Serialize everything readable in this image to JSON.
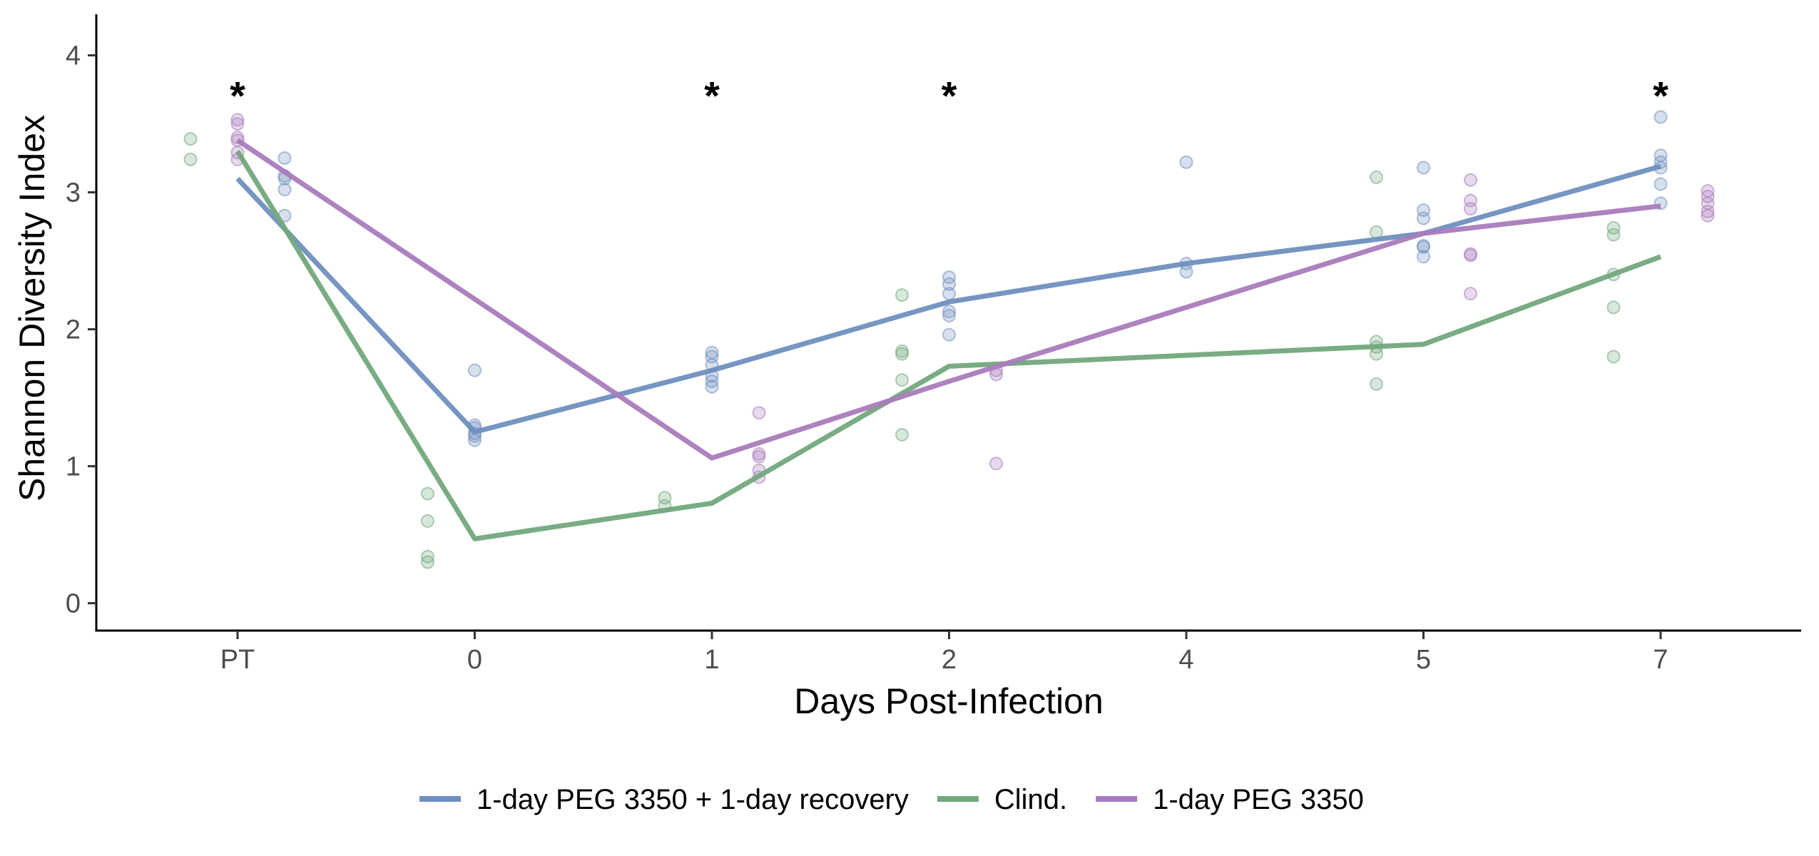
{
  "chart_data": {
    "type": "line",
    "xlabel": "Days Post-Infection",
    "ylabel": "Shannon Diversity Index",
    "categories": [
      "PT",
      "0",
      "1",
      "2",
      "4",
      "5",
      "7"
    ],
    "yticks": [
      "0",
      "1",
      "2",
      "3",
      "4"
    ],
    "ylim": [
      -0.2,
      4.3
    ],
    "grid": false,
    "legend_position": "bottom",
    "annotations": [
      {
        "category": "PT",
        "y": 3.75,
        "text": "*"
      },
      {
        "category": "1",
        "y": 3.75,
        "text": "*"
      },
      {
        "category": "2",
        "y": 3.75,
        "text": "*"
      },
      {
        "category": "7",
        "y": 3.75,
        "text": "*"
      }
    ],
    "series": [
      {
        "name": "1-day PEG 3350 + 1-day recovery",
        "color": "#6f8fbf",
        "line_x": [
          "PT",
          "0",
          "1",
          "2",
          "4",
          "5",
          "7"
        ],
        "line_values": [
          3.1,
          1.25,
          1.7,
          2.2,
          2.48,
          2.7,
          3.19
        ],
        "points": {
          "PT": [
            3.25,
            3.12,
            3.1,
            3.02,
            2.83
          ],
          "0": [
            1.7,
            1.3,
            1.28,
            1.24,
            1.22,
            1.19
          ],
          "1": [
            1.83,
            1.8,
            1.74,
            1.66,
            1.62,
            1.58
          ],
          "2": [
            2.38,
            2.33,
            2.26,
            2.13,
            2.1,
            1.96
          ],
          "4": [
            3.22,
            2.48,
            2.42
          ],
          "5": [
            3.18,
            2.87,
            2.81,
            2.61,
            2.6,
            2.53
          ],
          "7": [
            3.55,
            3.27,
            3.22,
            3.18,
            3.06,
            2.92
          ]
        }
      },
      {
        "name": "Clind.",
        "color": "#72a87c",
        "line_x": [
          "PT",
          "0",
          "1",
          "2",
          "5",
          "7"
        ],
        "line_values": [
          3.3,
          0.47,
          0.73,
          1.73,
          1.89,
          2.53
        ],
        "points": {
          "PT": [
            3.39,
            3.24
          ],
          "0": [
            0.8,
            0.6,
            0.34,
            0.3
          ],
          "1": [
            0.77,
            0.71
          ],
          "2": [
            2.25,
            1.84,
            1.82,
            1.63,
            1.23
          ],
          "5": [
            3.11,
            2.71,
            1.91,
            1.87,
            1.82,
            1.6
          ],
          "7": [
            2.74,
            2.69,
            2.4,
            2.16,
            1.8
          ]
        }
      },
      {
        "name": "1-day PEG 3350",
        "color": "#a97bbc",
        "line_x": [
          "PT",
          "1",
          "2",
          "5",
          "7"
        ],
        "line_values": [
          3.38,
          1.06,
          1.62,
          2.7,
          2.9
        ],
        "points": {
          "PT": [
            3.53,
            3.5,
            3.4,
            3.38,
            3.29,
            3.24
          ],
          "1": [
            1.39,
            1.09,
            1.07,
            0.97,
            0.92
          ],
          "2": [
            1.7,
            1.67,
            1.02
          ],
          "5": [
            3.09,
            2.94,
            2.88,
            2.55,
            2.54,
            2.26
          ],
          "7": [
            3.01,
            2.97,
            2.92,
            2.86,
            2.83
          ]
        }
      }
    ]
  }
}
